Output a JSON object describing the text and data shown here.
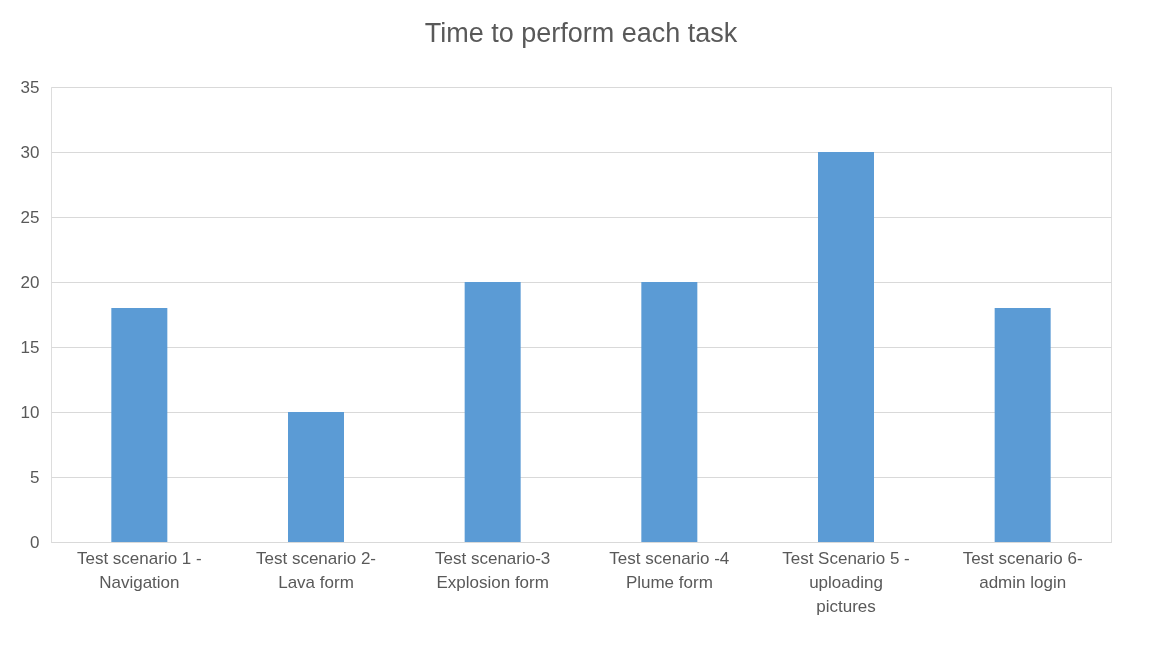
{
  "chart_data": {
    "type": "bar",
    "title": "Time to perform each task",
    "categories": [
      "Test scenario 1 - Navigation",
      "Test scenario 2- Lava form",
      "Test scenario-3 Explosion form",
      "Test scenario -4 Plume form",
      "Test Scenario 5 - uploading pictures",
      "Test scenario 6- admin login"
    ],
    "values": [
      18,
      10,
      20,
      20,
      30,
      18
    ],
    "color": "#5b9bd5",
    "ylim": [
      0,
      35
    ],
    "yticks": [
      0,
      5,
      10,
      15,
      20,
      25,
      30,
      35
    ],
    "grid": "y"
  }
}
